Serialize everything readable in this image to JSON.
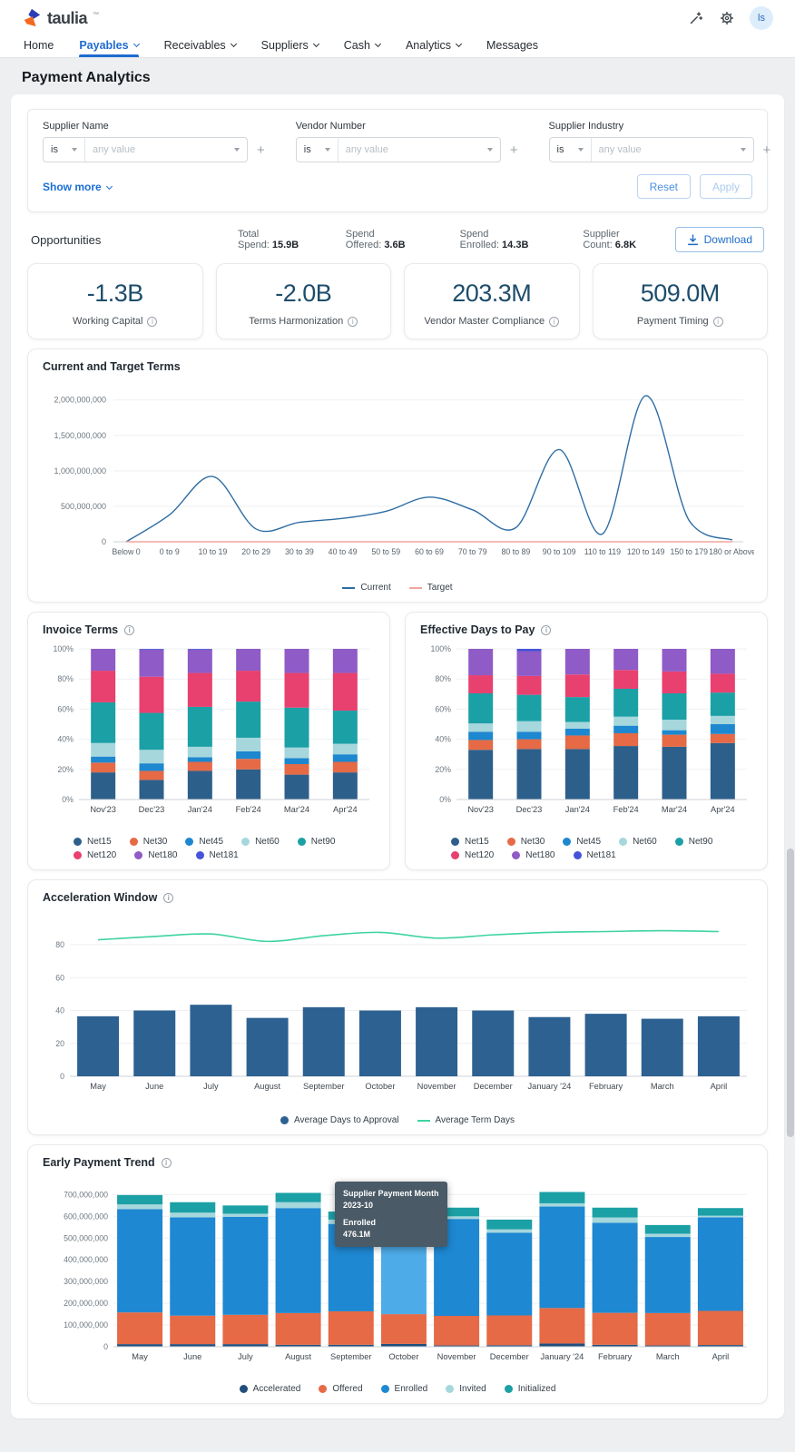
{
  "brand": {
    "name": "taulia",
    "trademark": "™"
  },
  "header": {
    "avatar": "ls"
  },
  "nav": {
    "items": [
      {
        "label": "Home",
        "caret": false,
        "active": false
      },
      {
        "label": "Payables",
        "caret": true,
        "active": true
      },
      {
        "label": "Receivables",
        "caret": true,
        "active": false
      },
      {
        "label": "Suppliers",
        "caret": true,
        "active": false
      },
      {
        "label": "Cash",
        "caret": true,
        "active": false
      },
      {
        "label": "Analytics",
        "caret": true,
        "active": false
      },
      {
        "label": "Messages",
        "caret": false,
        "active": false
      }
    ]
  },
  "page": {
    "title": "Payment Analytics"
  },
  "filters": {
    "groups": [
      {
        "label": "Supplier Name",
        "operator": "is",
        "placeholder": "any value"
      },
      {
        "label": "Vendor Number",
        "operator": "is",
        "placeholder": "any value"
      },
      {
        "label": "Supplier Industry",
        "operator": "is",
        "placeholder": "any value"
      }
    ],
    "show_more_label": "Show more",
    "reset_label": "Reset",
    "apply_label": "Apply"
  },
  "opportunities": {
    "title": "Opportunities",
    "stats": [
      {
        "label": "Total Spend:",
        "value": "15.9B"
      },
      {
        "label": "Spend Offered:",
        "value": "3.6B"
      },
      {
        "label": "Spend Enrolled:",
        "value": "14.3B"
      },
      {
        "label": "Supplier Count:",
        "value": "6.8K"
      }
    ],
    "download_label": "Download",
    "kpis": [
      {
        "value": "-1.3B",
        "label": "Working Capital"
      },
      {
        "value": "-2.0B",
        "label": "Terms Harmonization"
      },
      {
        "value": "203.3M",
        "label": "Vendor Master Compliance"
      },
      {
        "value": "509.0M",
        "label": "Payment Timing"
      }
    ]
  },
  "chart_data": [
    {
      "id": "current-target-terms",
      "type": "line",
      "title": "Current and Target Terms",
      "categories": [
        "Below 0",
        "0 to 9",
        "10 to 19",
        "20 to 29",
        "30 to 39",
        "40 to 49",
        "50 to 59",
        "60 to 69",
        "70 to 79",
        "80 to 89",
        "90 to 109",
        "110 to 119",
        "120 to 149",
        "150 to 179",
        "180 or Above"
      ],
      "series": [
        {
          "name": "Current",
          "color": "#2e6da4",
          "values": [
            0,
            380000000,
            920000000,
            180000000,
            275000000,
            330000000,
            430000000,
            630000000,
            450000000,
            200000000,
            1300000000,
            110000000,
            2060000000,
            300000000,
            25000000
          ]
        },
        {
          "name": "Target",
          "color": "#f2a69e",
          "values": [
            0,
            0,
            0,
            0,
            0,
            0,
            0,
            0,
            0,
            0,
            0,
            0,
            0,
            0,
            0
          ]
        }
      ],
      "ylim": [
        0,
        2150000000
      ],
      "yticks": [
        0,
        500000000,
        1000000000,
        1500000000,
        2000000000
      ],
      "grid": true,
      "legend_position": "bottom"
    },
    {
      "id": "invoice-terms",
      "type": "bar",
      "stacked": true,
      "percent": true,
      "title": "Invoice Terms",
      "categories": [
        "Nov'23",
        "Dec'23",
        "Jan'24",
        "Feb'24",
        "Mar'24",
        "Apr'24"
      ],
      "series": [
        {
          "name": "Net15",
          "color": "#2d5f8b",
          "values": [
            18,
            13,
            19,
            20,
            16.5,
            18
          ]
        },
        {
          "name": "Net30",
          "color": "#e56a45",
          "values": [
            6.5,
            6,
            6,
            7,
            7,
            7
          ]
        },
        {
          "name": "Net45",
          "color": "#1d87cf",
          "values": [
            4,
            5,
            3,
            5,
            4,
            5
          ]
        },
        {
          "name": "Net60",
          "color": "#a5d7dd",
          "values": [
            9,
            9,
            7,
            9,
            7,
            7
          ]
        },
        {
          "name": "Net90",
          "color": "#1ba0a6",
          "values": [
            27,
            24.5,
            26.5,
            24,
            26.5,
            22
          ]
        },
        {
          "name": "Net120",
          "color": "#e8406f",
          "values": [
            21,
            24,
            22.5,
            20.5,
            23,
            25
          ]
        },
        {
          "name": "Net180",
          "color": "#8f5bc7",
          "values": [
            14.5,
            18,
            15.5,
            14.5,
            16,
            16
          ]
        },
        {
          "name": "Net181",
          "color": "#4553d9",
          "values": [
            0,
            0.5,
            0.5,
            0,
            0,
            0
          ]
        }
      ],
      "yticks_percent": [
        0,
        20,
        40,
        60,
        80,
        100
      ]
    },
    {
      "id": "effective-days-to-pay",
      "type": "bar",
      "stacked": true,
      "percent": true,
      "title": "Effective Days to Pay",
      "categories": [
        "Nov'23",
        "Dec'23",
        "Jan'24",
        "Feb'24",
        "Mar'24",
        "Apr'24"
      ],
      "series": [
        {
          "name": "Net15",
          "color": "#2d5f8b",
          "values": [
            33,
            33.5,
            33.5,
            35.5,
            35,
            37.5
          ]
        },
        {
          "name": "Net30",
          "color": "#e56a45",
          "values": [
            6.5,
            6.5,
            9,
            8.5,
            8,
            6
          ]
        },
        {
          "name": "Net45",
          "color": "#1d87cf",
          "values": [
            5.5,
            5,
            4.5,
            5,
            3,
            6.5
          ]
        },
        {
          "name": "Net60",
          "color": "#a5d7dd",
          "values": [
            5.5,
            7,
            4.5,
            6,
            7,
            5.5
          ]
        },
        {
          "name": "Net90",
          "color": "#1ba0a6",
          "values": [
            20,
            17.5,
            16.5,
            18.5,
            17.5,
            15.5
          ]
        },
        {
          "name": "Net120",
          "color": "#e8406f",
          "values": [
            12,
            12.5,
            15,
            12.5,
            14.5,
            12.5
          ]
        },
        {
          "name": "Net180",
          "color": "#8f5bc7",
          "values": [
            17.5,
            16.5,
            17,
            14,
            15,
            16.5
          ]
        },
        {
          "name": "Net181",
          "color": "#4553d9",
          "values": [
            0,
            1.5,
            0,
            0,
            0,
            0
          ]
        }
      ],
      "yticks_percent": [
        0,
        20,
        40,
        60,
        80,
        100
      ]
    },
    {
      "id": "acceleration-window",
      "type": "bar+line",
      "title": "Acceleration Window",
      "categories": [
        "May",
        "June",
        "July",
        "August",
        "September",
        "October",
        "November",
        "December",
        "January '24",
        "February",
        "March",
        "April"
      ],
      "series": [
        {
          "name": "Average Days to Approval",
          "type": "bar",
          "color": "#2d6191",
          "values": [
            36.5,
            40,
            43.5,
            35.5,
            42,
            40,
            42,
            40,
            36,
            38,
            35,
            36.5
          ]
        },
        {
          "name": "Average Term Days",
          "type": "line",
          "color": "#3ed3a2",
          "values": [
            83,
            85,
            86.5,
            82,
            85.5,
            87.5,
            84,
            86,
            87.5,
            88,
            88.5,
            88
          ]
        }
      ],
      "ylim": [
        0,
        96
      ],
      "yticks": [
        0,
        20,
        40,
        60,
        80
      ]
    },
    {
      "id": "early-payment-trend",
      "type": "bar",
      "stacked": true,
      "title": "Early Payment Trend",
      "categories": [
        "May",
        "June",
        "July",
        "August",
        "September",
        "October",
        "November",
        "December",
        "January '24",
        "February",
        "March",
        "April"
      ],
      "series": [
        {
          "name": "Accelerated",
          "color": "#1f4e7d",
          "values": [
            12000000,
            12000000,
            12000000,
            9000000,
            9000000,
            13000000,
            6000000,
            7000000,
            15000000,
            9000000,
            6000000,
            8000000
          ]
        },
        {
          "name": "Offered",
          "color": "#e56a45",
          "values": [
            146000000,
            131000000,
            135000000,
            146000000,
            154000000,
            137000000,
            136000000,
            137000000,
            163000000,
            147000000,
            149000000,
            157000000
          ]
        },
        {
          "name": "Enrolled",
          "color": "#1e88d2",
          "values": [
            475000000,
            452000000,
            451000000,
            483000000,
            402000000,
            476100000,
            446000000,
            381000000,
            467000000,
            414000000,
            350000000,
            430000000
          ]
        },
        {
          "name": "Invited",
          "color": "#a5d7dd",
          "values": [
            22000000,
            22000000,
            14000000,
            27000000,
            20000000,
            14000000,
            12000000,
            15000000,
            15000000,
            25000000,
            15000000,
            8000000
          ]
        },
        {
          "name": "Initialized",
          "color": "#1ba0a6",
          "values": [
            43000000,
            48000000,
            38000000,
            43000000,
            37000000,
            25000000,
            40000000,
            45000000,
            52000000,
            45000000,
            40000000,
            35000000
          ]
        }
      ],
      "ylim": [
        0,
        760000000
      ],
      "yticks": [
        0,
        100000000,
        200000000,
        300000000,
        400000000,
        500000000,
        600000000,
        700000000
      ],
      "highlight": {
        "category": "October",
        "series": "Enrolled",
        "color": "#4dabe8"
      },
      "tooltip": {
        "title": "Supplier Payment Month",
        "month": "2023-10",
        "series_name": "Enrolled",
        "value": "476.1M"
      }
    }
  ]
}
